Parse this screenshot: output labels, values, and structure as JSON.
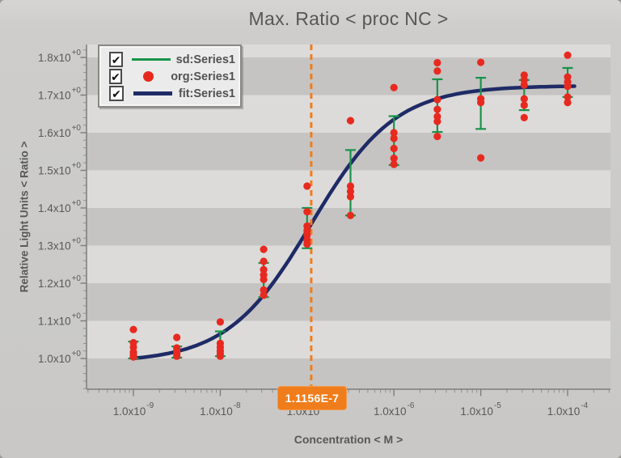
{
  "title": "Max. Ratio < proc NC >",
  "legend": {
    "items": [
      {
        "label": "sd:Series1",
        "swatch": "line",
        "checked": true,
        "check_glyph": "✔"
      },
      {
        "label": "org:Series1",
        "swatch": "dot",
        "checked": true,
        "check_glyph": "✔"
      },
      {
        "label": "fit:Series1",
        "swatch": "thick-line",
        "checked": true,
        "check_glyph": "✔"
      }
    ]
  },
  "colors": {
    "sd_green": "#18934a",
    "org_red": "#e8291f",
    "fit_navy": "#1f2b66",
    "marker_orange": "#f07d1c",
    "band_light": "#dcdbd9",
    "band_dark": "#c5c4c2",
    "axis": "#7d7d7d",
    "tick_minor": "#909090",
    "text": "#585858"
  },
  "chart_data": {
    "type": "scatter",
    "title": "Max. Ratio < proc NC >",
    "xlabel": "Concentration < M >",
    "ylabel": "Relative Light Units < Ratio >",
    "x_scale": "log",
    "xlim": [
      3e-10,
      0.00032
    ],
    "ylim": [
      0.918,
      1.834
    ],
    "grid": "banded",
    "legend_position": "top-left",
    "x_ticks": [
      {
        "mantissa": "1.0x10",
        "exp": "-9",
        "value": 1e-09
      },
      {
        "mantissa": "1.0x10",
        "exp": "-8",
        "value": 1e-08
      },
      {
        "mantissa": "1.0x10",
        "exp": "-7",
        "value": 1e-07
      },
      {
        "mantissa": "1.0x10",
        "exp": "-6",
        "value": 1e-06
      },
      {
        "mantissa": "1.0x10",
        "exp": "-5",
        "value": 1e-05
      },
      {
        "mantissa": "1.0x10",
        "exp": "-4",
        "value": 0.0001
      }
    ],
    "y_ticks": [
      {
        "mantissa": "1.0x10",
        "exp": "+0",
        "value": 1.0
      },
      {
        "mantissa": "1.1x10",
        "exp": "+0",
        "value": 1.1
      },
      {
        "mantissa": "1.2x10",
        "exp": "+0",
        "value": 1.2
      },
      {
        "mantissa": "1.3x10",
        "exp": "+0",
        "value": 1.3
      },
      {
        "mantissa": "1.4x10",
        "exp": "+0",
        "value": 1.4
      },
      {
        "mantissa": "1.5x10",
        "exp": "+0",
        "value": 1.5
      },
      {
        "mantissa": "1.6x10",
        "exp": "+0",
        "value": 1.6
      },
      {
        "mantissa": "1.7x10",
        "exp": "+0",
        "value": 1.7
      },
      {
        "mantissa": "1.8x10",
        "exp": "+0",
        "value": 1.8
      }
    ],
    "band_dark_intervals": [
      [
        1.1,
        1.2
      ],
      [
        1.3,
        1.4
      ],
      [
        1.5,
        1.6
      ],
      [
        1.7,
        1.8
      ],
      [
        0.918,
        1.0
      ]
    ],
    "series": [
      {
        "name": "org:Series1",
        "type": "scatter",
        "color": "#e8291f",
        "groups": [
          {
            "x": 1e-09,
            "y": [
              1.077,
              1.042,
              1.03,
              1.017,
              1.01,
              1.004
            ]
          },
          {
            "x": 3.16e-09,
            "y": [
              1.056,
              1.028,
              1.02,
              1.013,
              1.006
            ]
          },
          {
            "x": 1e-08,
            "y": [
              1.097,
              1.04,
              1.03,
              1.02,
              1.012,
              1.006
            ]
          },
          {
            "x": 3.16e-08,
            "y": [
              1.29,
              1.258,
              1.236,
              1.222,
              1.21,
              1.182,
              1.168
            ]
          },
          {
            "x": 1e-07,
            "y": [
              1.458,
              1.39,
              1.352,
              1.34,
              1.328,
              1.315,
              1.304
            ]
          },
          {
            "x": 3.16e-07,
            "y": [
              1.632,
              1.458,
              1.444,
              1.43,
              1.38
            ]
          },
          {
            "x": 1e-06,
            "y": [
              1.72,
              1.6,
              1.585,
              1.558,
              1.532,
              1.516
            ]
          },
          {
            "x": 3.16e-06,
            "y": [
              1.786,
              1.764,
              1.688,
              1.662,
              1.643,
              1.63,
              1.59
            ]
          },
          {
            "x": 1e-05,
            "y": [
              1.787,
              1.69,
              1.68,
              1.533
            ]
          },
          {
            "x": 3.16e-05,
            "y": [
              1.753,
              1.74,
              1.727,
              1.69,
              1.673,
              1.64
            ]
          },
          {
            "x": 0.0001,
            "y": [
              1.806,
              1.748,
              1.735,
              1.723,
              1.695,
              1.68
            ]
          }
        ]
      },
      {
        "name": "sd:Series1",
        "type": "errorbar",
        "color": "#18934a",
        "bars": [
          {
            "x": 1e-09,
            "low": 1.0,
            "high": 1.045
          },
          {
            "x": 3.16e-09,
            "low": 1.002,
            "high": 1.032
          },
          {
            "x": 1e-08,
            "low": 1.006,
            "high": 1.072
          },
          {
            "x": 3.16e-08,
            "low": 1.163,
            "high": 1.254
          },
          {
            "x": 1e-07,
            "low": 1.293,
            "high": 1.4
          },
          {
            "x": 3.16e-07,
            "low": 1.38,
            "high": 1.554
          },
          {
            "x": 1e-06,
            "low": 1.514,
            "high": 1.644
          },
          {
            "x": 3.16e-06,
            "low": 1.602,
            "high": 1.742
          },
          {
            "x": 1e-05,
            "low": 1.61,
            "high": 1.746
          },
          {
            "x": 3.16e-05,
            "low": 1.66,
            "high": 1.74
          },
          {
            "x": 0.0001,
            "low": 1.695,
            "high": 1.772
          }
        ]
      },
      {
        "name": "fit:Series1",
        "type": "sigmoid-fit",
        "color": "#1f2b66",
        "params": {
          "bottom": 0.99,
          "top": 1.725,
          "ec50": 1.1156e-07,
          "hill": 0.9
        },
        "range": [
          1e-09,
          0.00012
        ]
      }
    ],
    "annotation": {
      "label": "1.1156E-7",
      "x": 1.1156e-07
    }
  }
}
